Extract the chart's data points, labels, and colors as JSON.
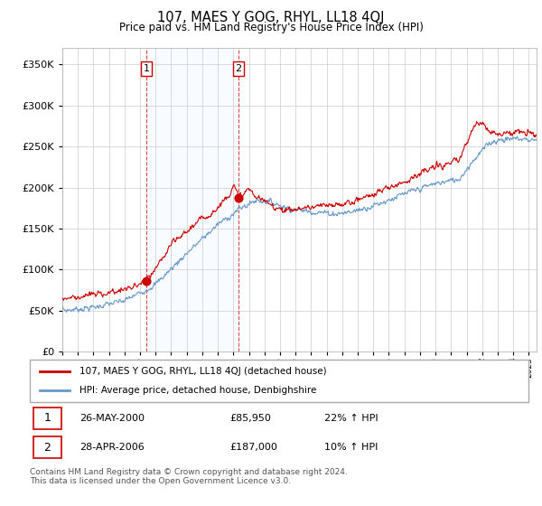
{
  "title": "107, MAES Y GOG, RHYL, LL18 4QJ",
  "subtitle": "Price paid vs. HM Land Registry's House Price Index (HPI)",
  "ylim": [
    0,
    370000
  ],
  "xlim_start": 1995.0,
  "xlim_end": 2025.5,
  "sale1_x": 2000.4,
  "sale1_y": 85950,
  "sale1_label": "1",
  "sale2_x": 2006.33,
  "sale2_y": 187000,
  "sale2_label": "2",
  "red_line_color": "#cc0000",
  "blue_line_color": "#6699cc",
  "shade_color": "#ddeeff",
  "grid_color": "#cccccc",
  "background_color": "#ffffff",
  "legend_label_red": "107, MAES Y GOG, RHYL, LL18 4QJ (detached house)",
  "legend_label_blue": "HPI: Average price, detached house, Denbighshire",
  "table_row1": [
    "1",
    "26-MAY-2000",
    "£85,950",
    "22% ↑ HPI"
  ],
  "table_row2": [
    "2",
    "28-APR-2006",
    "£187,000",
    "10% ↑ HPI"
  ],
  "footnote": "Contains HM Land Registry data © Crown copyright and database right 2024.\nThis data is licensed under the Open Government Licence v3.0.",
  "vline1_x": 2000.4,
  "vline2_x": 2006.33
}
